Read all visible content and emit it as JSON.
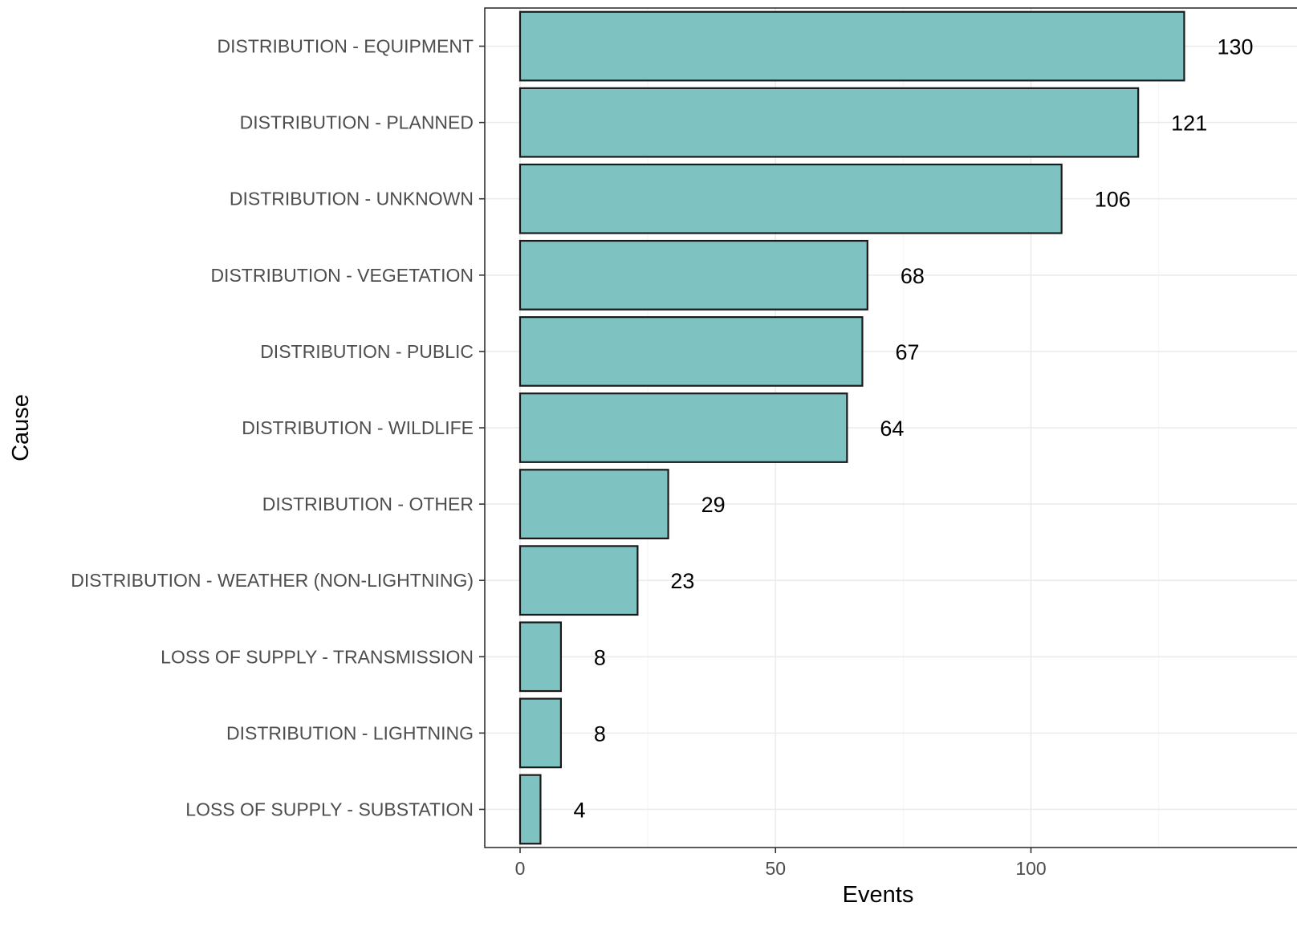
{
  "chart_data": {
    "type": "bar",
    "orientation": "horizontal",
    "xlabel": "Events",
    "ylabel": "Cause",
    "xlim": [
      -7,
      145
    ],
    "x_ticks": [
      0,
      50,
      100
    ],
    "grid": true,
    "bar_color": "#7fc2c2",
    "bar_edge_color": "#1a1a1a",
    "categories": [
      "DISTRIBUTION - EQUIPMENT",
      "DISTRIBUTION - PLANNED",
      "DISTRIBUTION - UNKNOWN",
      "DISTRIBUTION - VEGETATION",
      "DISTRIBUTION - PUBLIC",
      "DISTRIBUTION - WILDLIFE",
      "DISTRIBUTION - OTHER",
      "DISTRIBUTION - WEATHER (NON-LIGHTNING)",
      "LOSS OF SUPPLY - TRANSMISSION",
      "DISTRIBUTION - LIGHTNING",
      "LOSS OF SUPPLY - SUBSTATION"
    ],
    "values": [
      130,
      121,
      106,
      68,
      67,
      64,
      29,
      23,
      8,
      8,
      4
    ],
    "data_labels": [
      "130",
      "121",
      "106",
      "68",
      "67",
      "64",
      "29",
      "23",
      "8",
      "8",
      "4"
    ]
  }
}
